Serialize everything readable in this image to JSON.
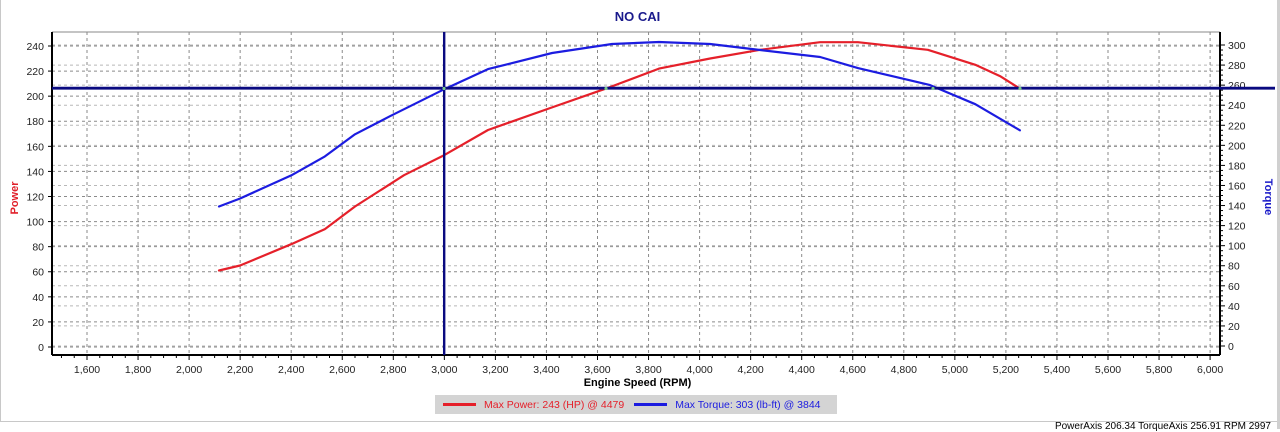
{
  "chart": {
    "title": "NO CAI",
    "xlabel": "Engine Speed (RPM)",
    "ylabel_left": "Power",
    "ylabel_right": "Torque",
    "legend": [
      {
        "label": "Max Power: 243 (HP) @ 4479",
        "color": "#e5202a"
      },
      {
        "label": "Max Torque: 303 (lb-ft) @ 3844",
        "color": "#1c1ce0"
      }
    ]
  },
  "status_bar": {
    "text": "PowerAxis 206.34 TorqueAxis 256.91 RPM 2997"
  },
  "cursor": {
    "rpm": 2997,
    "power": 206.34,
    "torque": 256.91
  },
  "chart_data": {
    "type": "line",
    "title": "NO CAI",
    "xlabel": "Engine Speed (RPM)",
    "ylabel": "Power",
    "ylabel_right": "Torque",
    "xlim": [
      1400,
      6050
    ],
    "ylim": [
      -6,
      250
    ],
    "ylim_right": [
      -8,
      312
    ],
    "x_ticks": [
      1600,
      1800,
      2000,
      2200,
      2400,
      2600,
      2800,
      3000,
      3200,
      3400,
      3600,
      3800,
      4000,
      4200,
      4400,
      4600,
      4800,
      5000,
      5200,
      5400,
      5600,
      5800,
      6000
    ],
    "y_ticks_left": [
      0,
      20,
      40,
      60,
      80,
      100,
      120,
      140,
      160,
      180,
      200,
      220,
      240
    ],
    "y_ticks_right": [
      0,
      20,
      40,
      60,
      80,
      100,
      120,
      140,
      160,
      180,
      200,
      220,
      240,
      260,
      280,
      300
    ],
    "grid": true,
    "legend_position": "bottom",
    "series": [
      {
        "name": "Max Power: 243 (HP) @ 4479",
        "axis": "left",
        "color": "#e5202a",
        "x": [
          2117,
          2200,
          2400,
          2532,
          2650,
          2842,
          3000,
          3171,
          3422,
          3633,
          3841,
          4041,
          4237,
          4472,
          4620,
          4894,
          5080,
          5177,
          5255
        ],
        "values": [
          61,
          65,
          82,
          94,
          112,
          137,
          153,
          173,
          191,
          206,
          222,
          230,
          237,
          243,
          243,
          237,
          225,
          216,
          206
        ]
      },
      {
        "name": "Max Torque: 303 (lb-ft) @ 3844",
        "axis": "right",
        "color": "#1c1ce0",
        "x": [
          2117,
          2200,
          2400,
          2532,
          2650,
          2787,
          3000,
          3171,
          3422,
          3657,
          3841,
          4041,
          4237,
          4472,
          4620,
          4903,
          5080,
          5255
        ],
        "values": [
          139,
          147,
          170,
          189,
          211,
          229,
          256,
          276,
          292,
          301,
          303,
          301,
          295,
          288,
          277,
          260,
          241,
          215
        ]
      }
    ],
    "annotations": [
      {
        "type": "crosshair",
        "x": 2997,
        "power": 206.34,
        "torque": 256.91
      }
    ]
  }
}
